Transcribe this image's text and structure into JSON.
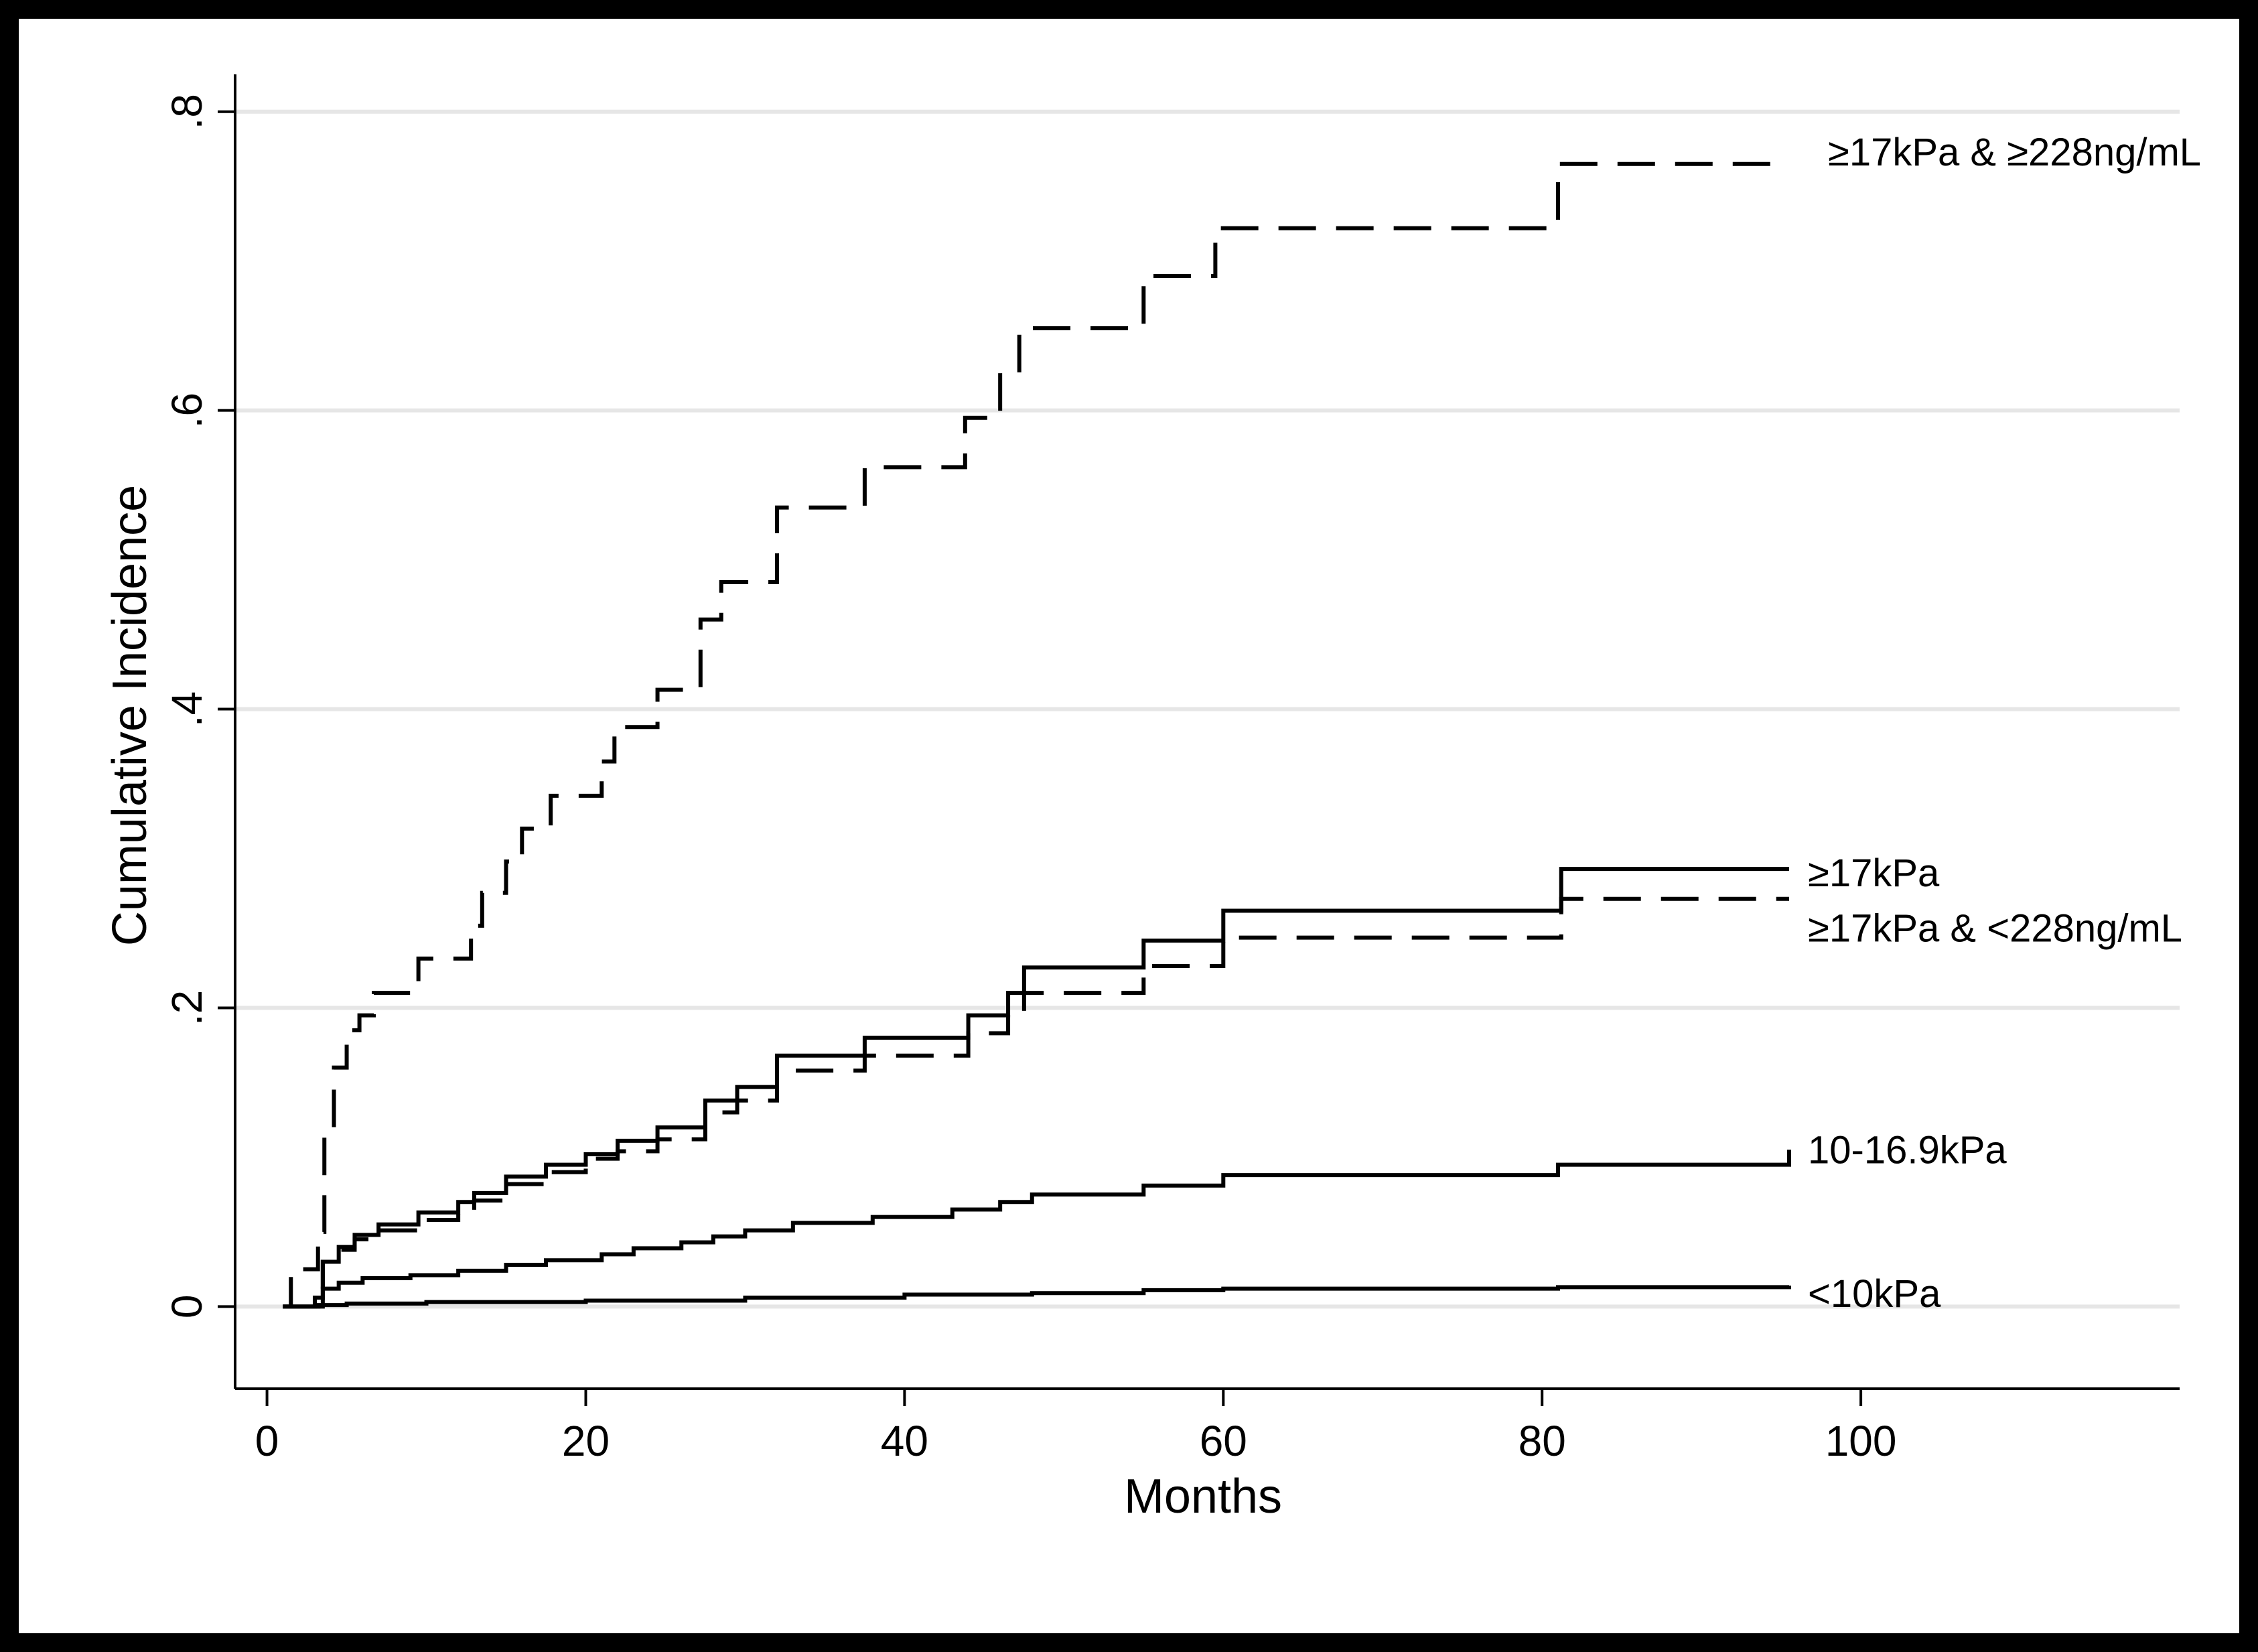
{
  "chart_data": {
    "type": "line",
    "title": "",
    "xlabel": "Months",
    "ylabel": "Cumulative Incidence",
    "xlim": [
      -2,
      120
    ],
    "ylim": [
      -0.055,
      0.825
    ],
    "xticks": [
      0,
      20,
      40,
      60,
      80,
      100
    ],
    "xtick_labels": [
      "0",
      "20",
      "40",
      "60",
      "80",
      "100"
    ],
    "yticks": [
      0,
      0.2,
      0.4,
      0.6,
      0.8
    ],
    "ytick_labels": [
      "0",
      ".2",
      ".4",
      ".6",
      ".8"
    ],
    "grid": "horizontal",
    "legend": "labels at line ends",
    "line_style": "step",
    "series": [
      {
        "name": "≥17kPa & ≥228ng/mL",
        "dash": "dashed",
        "x": [
          1,
          1.5,
          3.2,
          3.6,
          4.2,
          5,
          5.8,
          6.7,
          9.5,
          12.8,
          13.5,
          15,
          16,
          17.8,
          21,
          21.8,
          24.5,
          27.2,
          28.5,
          29.5,
          32,
          37.5,
          43.8,
          44.5,
          46,
          47.2,
          55,
          59.5,
          81,
          95.5
        ],
        "y": [
          0,
          0.025,
          0.05,
          0.12,
          0.16,
          0.185,
          0.195,
          0.21,
          0.233,
          0.255,
          0.277,
          0.298,
          0.32,
          0.342,
          0.365,
          0.388,
          0.413,
          0.46,
          0.485,
          0.485,
          0.535,
          0.562,
          0.595,
          0.595,
          0.625,
          0.655,
          0.69,
          0.722,
          0.765,
          0.765
        ]
      },
      {
        "name": "≥17kPa",
        "dash": "solid",
        "x": [
          1,
          3.5,
          4.5,
          5.5,
          7,
          9.5,
          12,
          13,
          15,
          17.5,
          20,
          22,
          24.5,
          27.5,
          29.5,
          32,
          37.5,
          44,
          46.5,
          47.5,
          55,
          60,
          81.2,
          95.5
        ],
        "y": [
          0,
          0.03,
          0.04,
          0.048,
          0.055,
          0.063,
          0.07,
          0.076,
          0.087,
          0.095,
          0.102,
          0.111,
          0.12,
          0.138,
          0.147,
          0.168,
          0.18,
          0.195,
          0.21,
          0.227,
          0.245,
          0.265,
          0.293,
          0.293
        ]
      },
      {
        "name": "≥17kPa & <228ng/mL",
        "dash": "dashed",
        "x": [
          1,
          3.5,
          4.5,
          5.5,
          7,
          9.5,
          12,
          13,
          15,
          17.5,
          20,
          22,
          24.5,
          27.5,
          29.5,
          32,
          37.5,
          44,
          46.5,
          47.5,
          55,
          60,
          81.2,
          95.5
        ],
        "y": [
          0,
          0.03,
          0.038,
          0.045,
          0.051,
          0.058,
          0.063,
          0.071,
          0.082,
          0.09,
          0.099,
          0.104,
          0.112,
          0.13,
          0.138,
          0.158,
          0.168,
          0.183,
          0.197,
          0.21,
          0.228,
          0.247,
          0.273,
          0.273
        ]
      },
      {
        "name": "10-16.9kPa",
        "dash": "solid",
        "x": [
          1,
          3,
          3.5,
          4.5,
          6,
          9,
          12,
          15,
          17.5,
          21,
          23,
          26,
          28,
          30,
          33,
          38,
          43,
          46,
          48,
          55,
          60,
          81,
          95.5
        ],
        "y": [
          0,
          0.006,
          0.012,
          0.016,
          0.019,
          0.021,
          0.024,
          0.028,
          0.031,
          0.035,
          0.039,
          0.043,
          0.047,
          0.051,
          0.056,
          0.06,
          0.065,
          0.07,
          0.075,
          0.081,
          0.088,
          0.095,
          0.105
        ]
      },
      {
        "name": "<10kPa",
        "dash": "solid",
        "x": [
          1,
          3,
          5,
          10,
          20,
          30,
          40,
          48,
          55,
          60,
          81,
          95.5
        ],
        "y": [
          0,
          0.001,
          0.002,
          0.003,
          0.004,
          0.006,
          0.008,
          0.009,
          0.011,
          0.012,
          0.013,
          0.014
        ]
      }
    ],
    "colors": {
      "background": "#ffffff",
      "frame": "#000000",
      "gridline": "#e6e6e6",
      "lines": "#000000"
    }
  }
}
